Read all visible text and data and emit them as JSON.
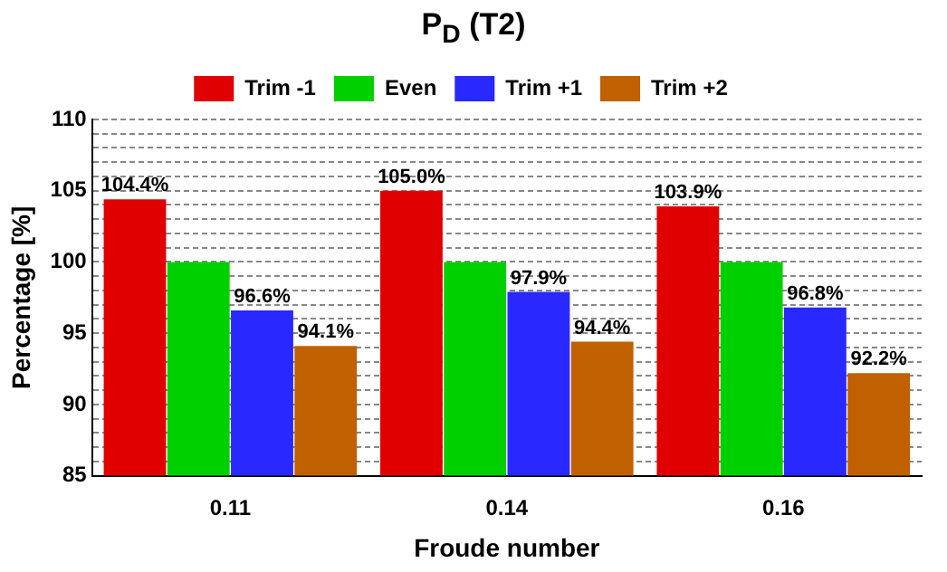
{
  "chart_data": {
    "type": "bar",
    "title": "P$_{D}$ (T2)",
    "xlabel": "Froude number",
    "ylabel": "Percentage [%]",
    "categories": [
      "0.11",
      "0.14",
      "0.16"
    ],
    "series": [
      {
        "name": "Trim -1",
        "color": "#e00000",
        "values": [
          104.4,
          105.0,
          103.9
        ],
        "value_labels": [
          "104.4%",
          "105.0%",
          "103.9%"
        ]
      },
      {
        "name": "Even",
        "color": "#00d000",
        "values": [
          100,
          100,
          100
        ]
      },
      {
        "name": "Trim +1",
        "color": "#2828ff",
        "values": [
          96.6,
          97.9,
          96.8
        ],
        "value_labels": [
          "96.6%",
          "97.9%",
          "96.8%"
        ]
      },
      {
        "name": "Trim +2",
        "color": "#c06000",
        "values": [
          94.1,
          94.4,
          92.2
        ],
        "value_labels": [
          "94.1%",
          "94.4%",
          "92.2%"
        ]
      }
    ],
    "ylim": [
      85,
      110
    ],
    "yticks": [
      85,
      {
        "value": 86,
        "label": null
      },
      {
        "value": 87,
        "label": null
      },
      {
        "value": 88,
        "label": null
      },
      {
        "value": 89,
        "label": null
      },
      90,
      {
        "value": 91,
        "label": null
      },
      {
        "value": 92,
        "label": null
      },
      {
        "value": 93,
        "label": null
      },
      {
        "value": 94,
        "label": null
      },
      95,
      {
        "value": 96,
        "label": null
      },
      {
        "value": 97,
        "label": null
      },
      {
        "value": 98,
        "label": null
      },
      {
        "value": 99,
        "label": null
      },
      100,
      {
        "value": 101,
        "label": null
      },
      {
        "value": 102,
        "label": null
      },
      {
        "value": 103,
        "label": null
      },
      {
        "value": 104,
        "label": null
      },
      105,
      {
        "value": 106,
        "label": null
      },
      {
        "value": 107,
        "label": null
      },
      {
        "value": 108,
        "label": null
      },
      {
        "value": 109,
        "label": null
      },
      110
    ],
    "grid": "y",
    "legend": "top"
  }
}
